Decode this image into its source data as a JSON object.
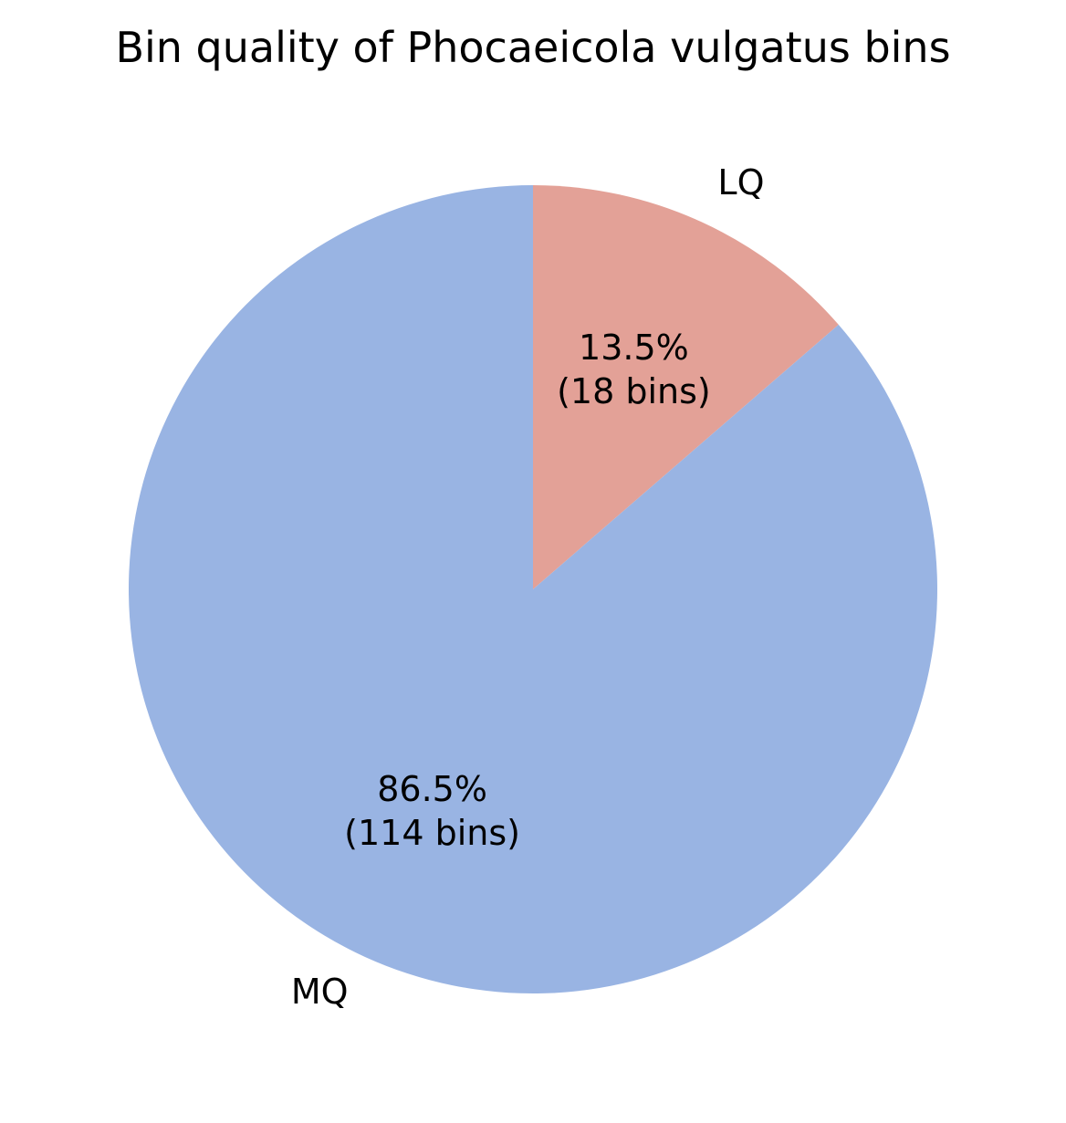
{
  "chart_data": {
    "type": "pie",
    "title": "Bin quality of Phocaeicola vulgatus bins",
    "start_angle_deg": 90,
    "direction": "clockwise",
    "slices": [
      {
        "label": "LQ",
        "value": 18,
        "percent": 13.5,
        "pct_text": "13.5%",
        "count_text": "(18 bins)",
        "color": "#e3a197"
      },
      {
        "label": "MQ",
        "value": 114,
        "percent": 86.5,
        "pct_text": "86.5%",
        "count_text": "(114 bins)",
        "color": "#99b4e3"
      }
    ]
  }
}
